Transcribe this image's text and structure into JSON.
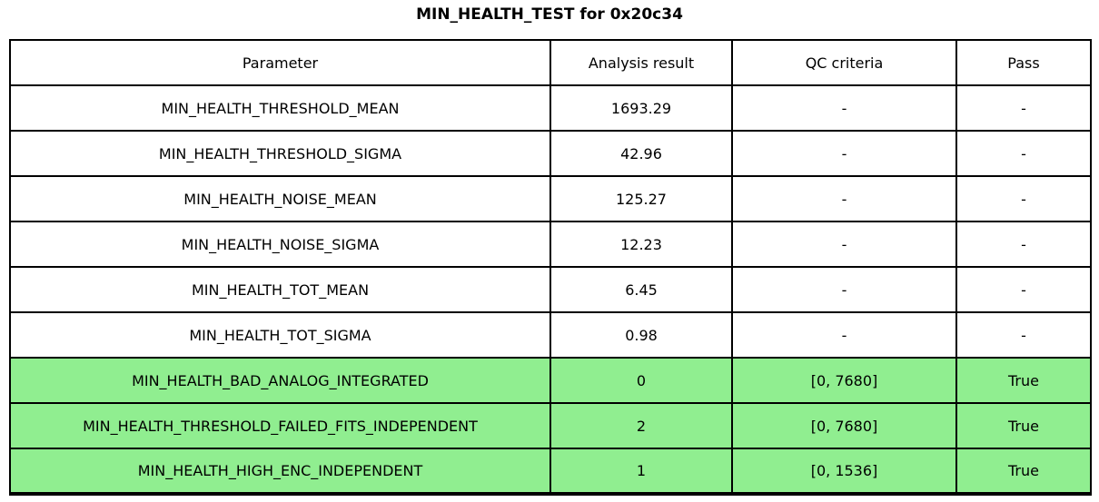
{
  "title": "MIN_HEALTH_TEST for 0x20c34",
  "colors": {
    "highlight_row_bg": "#90EE90",
    "row_bg": "#FFFFFF",
    "border": "#000000",
    "text": "#000000"
  },
  "chart_data": {
    "type": "table",
    "title": "MIN_HEALTH_TEST for 0x20c34",
    "columns": [
      "Parameter",
      "Analysis result",
      "QC criteria",
      "Pass"
    ],
    "rows": [
      {
        "cells": [
          "MIN_HEALTH_THRESHOLD_MEAN",
          "1693.29",
          "-",
          "-"
        ],
        "highlighted": false
      },
      {
        "cells": [
          "MIN_HEALTH_THRESHOLD_SIGMA",
          "42.96",
          "-",
          "-"
        ],
        "highlighted": false
      },
      {
        "cells": [
          "MIN_HEALTH_NOISE_MEAN",
          "125.27",
          "-",
          "-"
        ],
        "highlighted": false
      },
      {
        "cells": [
          "MIN_HEALTH_NOISE_SIGMA",
          "12.23",
          "-",
          "-"
        ],
        "highlighted": false
      },
      {
        "cells": [
          "MIN_HEALTH_TOT_MEAN",
          "6.45",
          "-",
          "-"
        ],
        "highlighted": false
      },
      {
        "cells": [
          "MIN_HEALTH_TOT_SIGMA",
          "0.98",
          "-",
          "-"
        ],
        "highlighted": false
      },
      {
        "cells": [
          "MIN_HEALTH_BAD_ANALOG_INTEGRATED",
          "0",
          "[0, 7680]",
          "True"
        ],
        "highlighted": true
      },
      {
        "cells": [
          "MIN_HEALTH_THRESHOLD_FAILED_FITS_INDEPENDENT",
          "2",
          "[0, 7680]",
          "True"
        ],
        "highlighted": true
      },
      {
        "cells": [
          "MIN_HEALTH_HIGH_ENC_INDEPENDENT",
          "1",
          "[0, 1536]",
          "True"
        ],
        "highlighted": true
      }
    ],
    "layout": {
      "header_row": true,
      "highlight_meaning": "row passes QC check",
      "grid": "full black borders"
    }
  }
}
